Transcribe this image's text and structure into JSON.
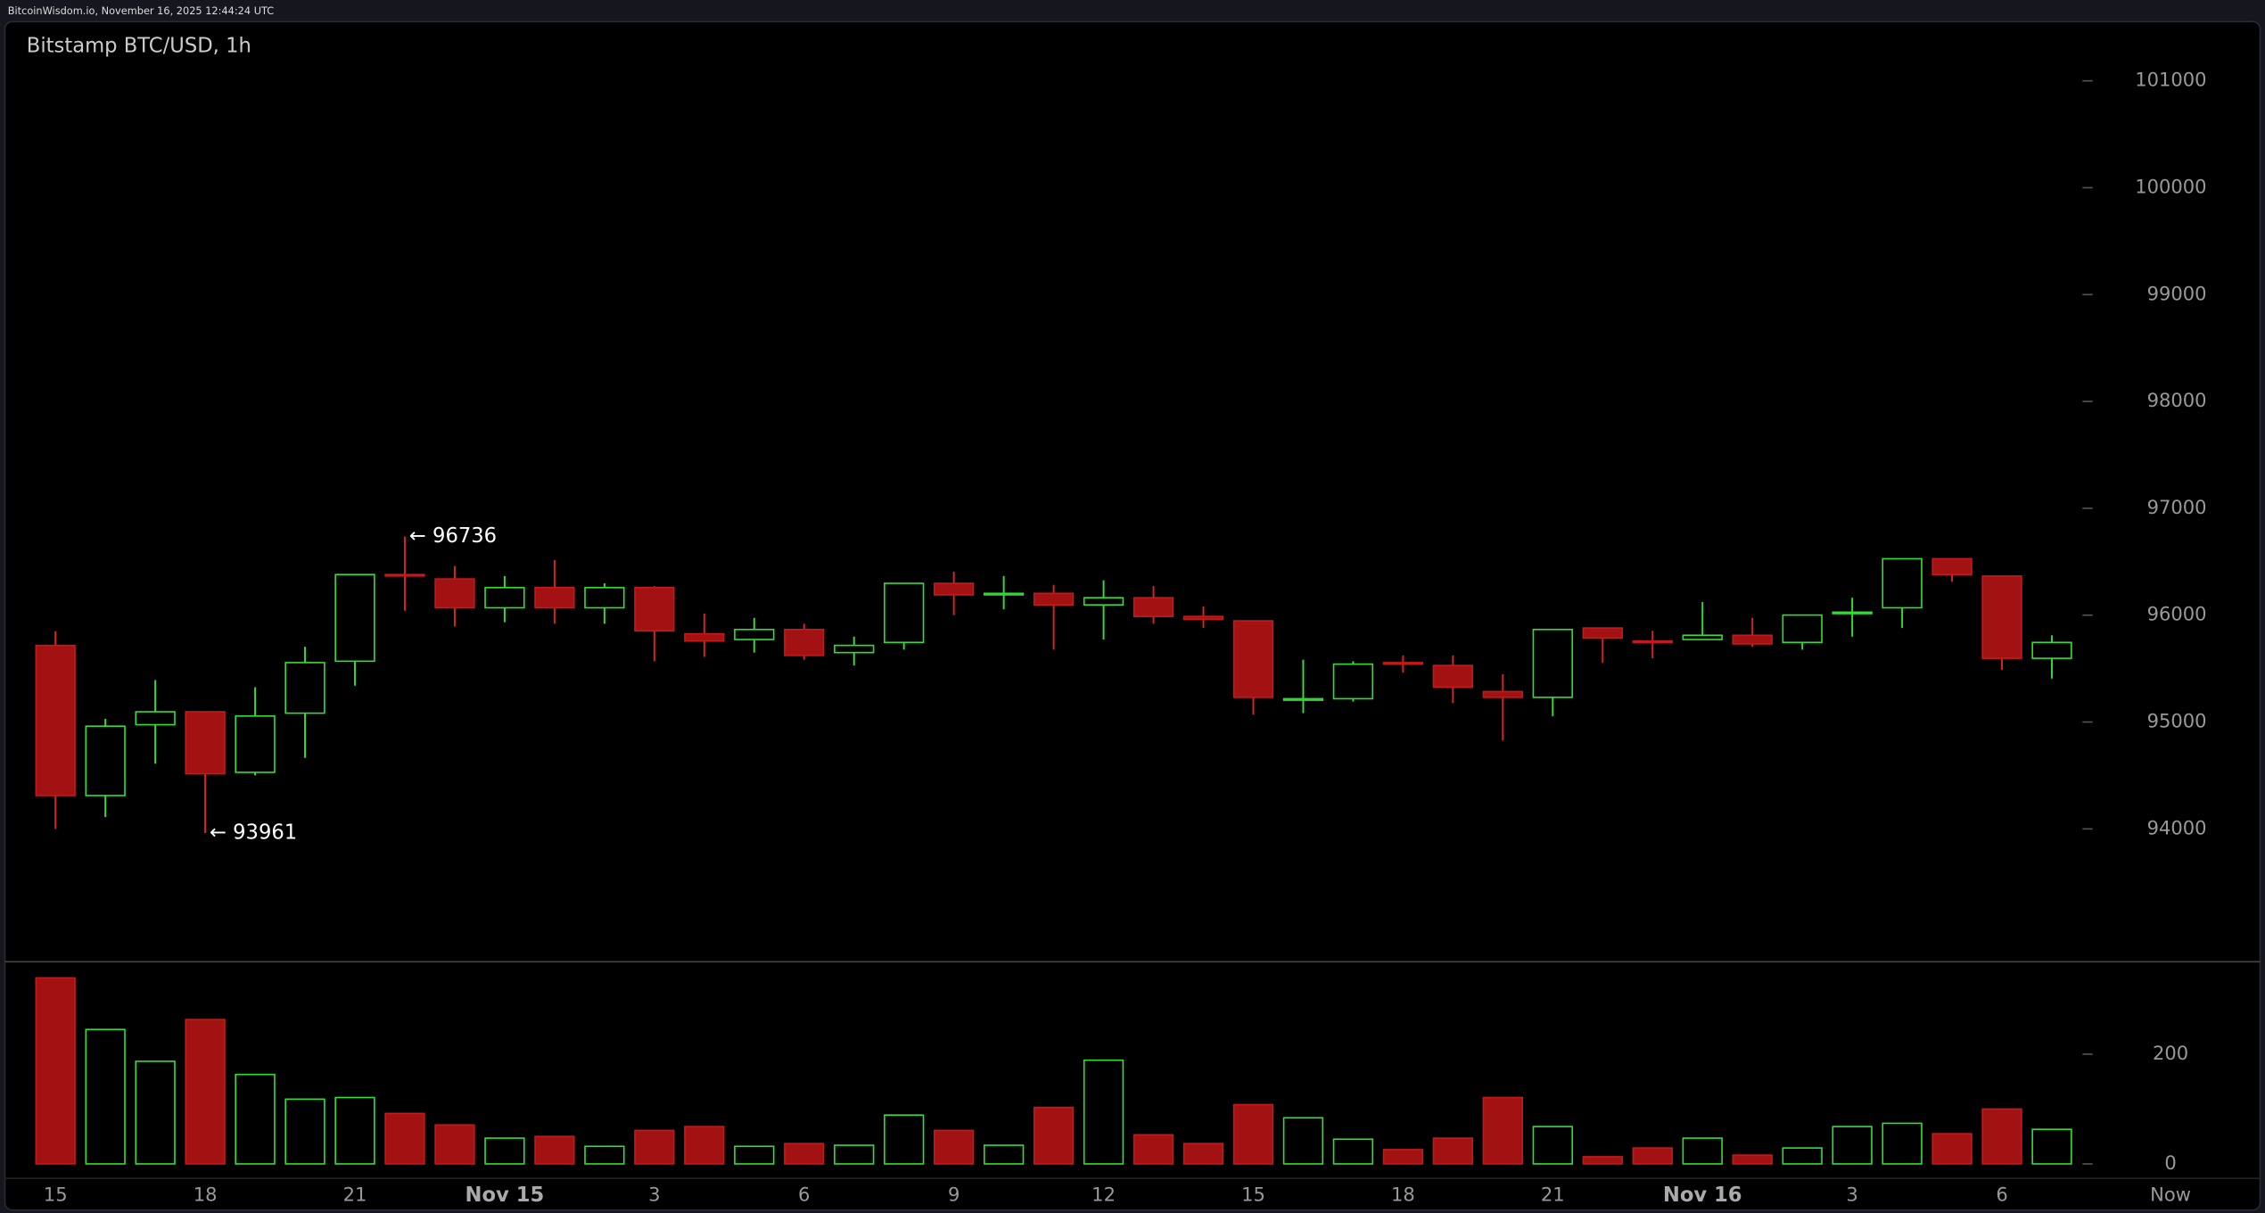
{
  "header": "BitcoinWisdom.io, November 16, 2025 12:44:24 UTC",
  "chart_data": [
    {
      "type": "candlestick",
      "title": "Bitstamp BTC/USD, 1h",
      "categories": [
        "15",
        null,
        null,
        "18",
        null,
        null,
        "21",
        null,
        null,
        "Nov 15",
        null,
        null,
        "3",
        null,
        null,
        "6",
        null,
        null,
        "9",
        null,
        null,
        "12",
        null,
        null,
        "15",
        null,
        null,
        "18",
        null,
        null,
        "21",
        null,
        null,
        "Nov 16",
        null,
        null,
        "3",
        null,
        null,
        "6",
        null
      ],
      "end_label": "Now",
      "open": [
        95717,
        94312,
        94975,
        95096,
        94529,
        95083,
        95569,
        96380,
        96339,
        96069,
        96258,
        96069,
        96258,
        95826,
        95772,
        95866,
        95650,
        95745,
        96298,
        96190,
        96204,
        96096,
        96163,
        95988,
        95947,
        95204,
        95218,
        95556,
        95529,
        95285,
        95231,
        95880,
        95758,
        95772,
        95812,
        95745,
        96020,
        96069,
        96528,
        96366,
        95596
      ],
      "high": [
        95850,
        95029,
        95393,
        95100,
        95326,
        95704,
        96380,
        96736,
        96461,
        96366,
        96515,
        96298,
        96272,
        96015,
        95974,
        95920,
        95799,
        96298,
        96407,
        96366,
        96285,
        96326,
        96272,
        96082,
        95947,
        95583,
        95569,
        95623,
        95623,
        95447,
        95866,
        95880,
        95853,
        96123,
        95974,
        96001,
        96163,
        96528,
        96528,
        96366,
        95812
      ],
      "low": [
        94000,
        94110,
        94610,
        93961,
        94502,
        94664,
        95340,
        96042,
        95893,
        95934,
        95920,
        95920,
        95569,
        95610,
        95650,
        95583,
        95529,
        95677,
        96001,
        96055,
        95677,
        95772,
        95920,
        95880,
        95069,
        95083,
        95191,
        95461,
        95177,
        94826,
        95056,
        95556,
        95596,
        95772,
        95704,
        95677,
        95799,
        95880,
        96312,
        95488,
        95407
      ],
      "close": [
        94312,
        94961,
        95096,
        94515,
        95056,
        95556,
        96380,
        96370,
        96069,
        96258,
        96069,
        96258,
        95853,
        95758,
        95866,
        95623,
        95717,
        96298,
        96190,
        96204,
        96096,
        96163,
        95988,
        95961,
        95231,
        95218,
        95542,
        95542,
        95326,
        95231,
        95866,
        95785,
        95745,
        95812,
        95731,
        96001,
        96028,
        96528,
        96380,
        95596,
        95745
      ],
      "up_color": "#33dd33",
      "down_color": "#a31212",
      "ylim": [
        92800,
        101500
      ],
      "yticks": [
        94000,
        95000,
        96000,
        97000,
        98000,
        99000,
        100000,
        101000
      ],
      "annotations": [
        {
          "label": "← 96736",
          "value": 96736
        },
        {
          "label": "← 93961",
          "value": 93961
        }
      ]
    },
    {
      "type": "bar",
      "values": [
        339,
        245,
        187,
        263,
        163,
        118,
        121,
        92,
        71,
        47,
        50,
        32,
        61,
        68,
        32,
        37,
        34,
        89,
        61,
        34,
        103,
        189,
        53,
        37,
        108,
        84,
        45,
        26,
        47,
        121,
        68,
        13,
        29,
        47,
        16,
        29,
        68,
        74,
        55,
        100,
        63
      ],
      "ylim": [
        0,
        360
      ],
      "yticks": [
        0,
        200
      ]
    }
  ]
}
